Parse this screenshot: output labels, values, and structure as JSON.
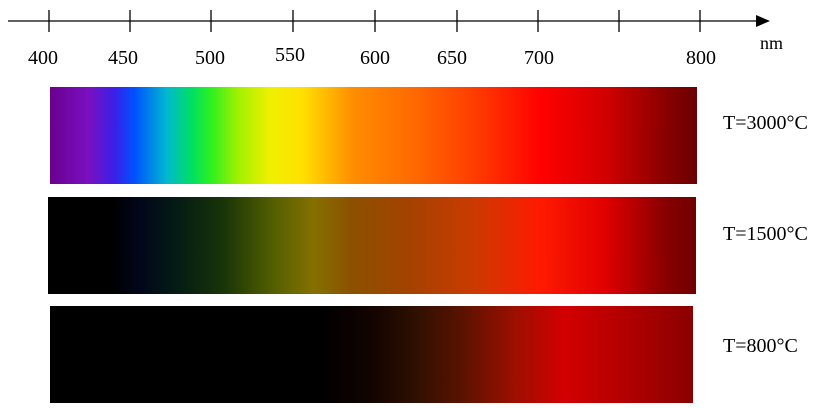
{
  "axis": {
    "unit": "nm",
    "tick_labels": [
      "400",
      "450",
      "500",
      "550",
      "600",
      "650",
      "700",
      "800"
    ]
  },
  "bands": [
    {
      "label": "T=3000°C"
    },
    {
      "label": "T=1500°C"
    },
    {
      "label": "T=800°C"
    }
  ]
}
